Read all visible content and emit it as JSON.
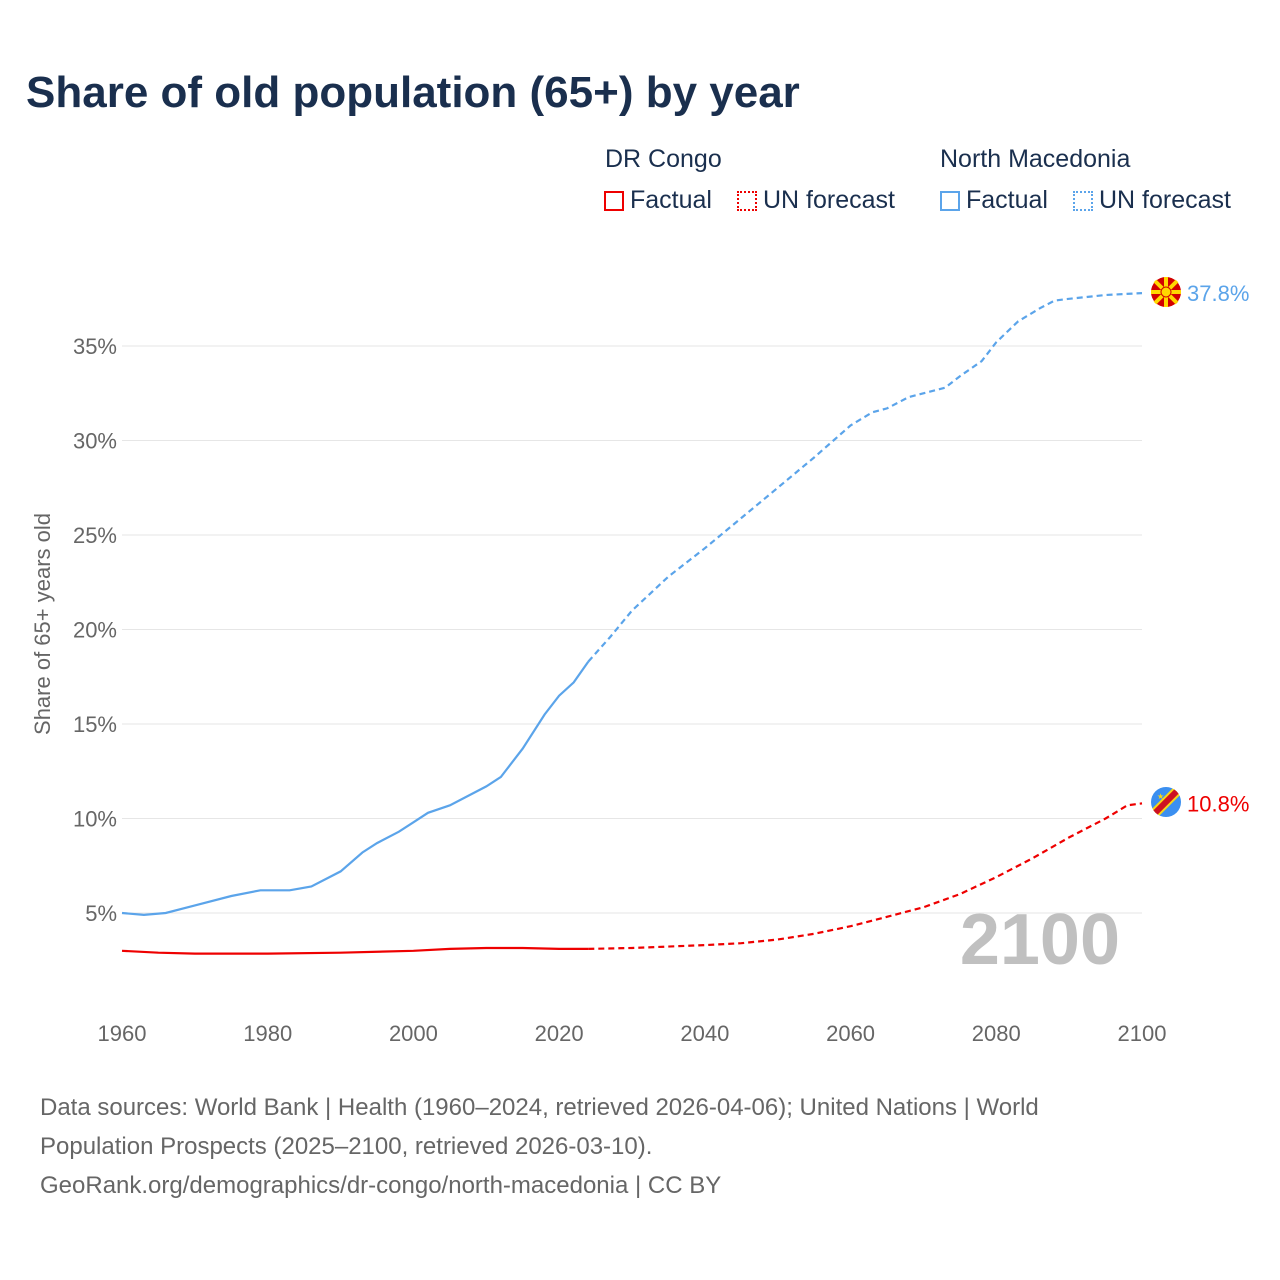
{
  "title": "Share of old population (65+) by year",
  "legend": {
    "groups": [
      {
        "name": "DR Congo",
        "factual": "Factual",
        "forecast": "UN forecast",
        "color": "#ee0000"
      },
      {
        "name": "North Macedonia",
        "factual": "Factual",
        "forecast": "UN forecast",
        "color": "#5ba4ea"
      }
    ]
  },
  "chart_data": {
    "type": "line",
    "title": "Share of old population (65+) by year",
    "ylabel": "Share of 65+ years old",
    "xlabel": "",
    "xlim": [
      1960,
      2100
    ],
    "ylim": [
      0,
      38
    ],
    "xticks": [
      "1960",
      "1980",
      "2000",
      "2020",
      "2040",
      "2060",
      "2080",
      "2100"
    ],
    "yticks": [
      "5%",
      "10%",
      "15%",
      "20%",
      "25%",
      "30%",
      "35%"
    ],
    "year_label": "2100",
    "series": [
      {
        "name": "North Macedonia",
        "color": "#5ba4ea",
        "end_label": "37.8%",
        "factual": [
          [
            1960,
            5.0
          ],
          [
            1963,
            4.9
          ],
          [
            1966,
            5.0
          ],
          [
            1970,
            5.4
          ],
          [
            1975,
            5.9
          ],
          [
            1979,
            6.2
          ],
          [
            1983,
            6.2
          ],
          [
            1986,
            6.4
          ],
          [
            1990,
            7.2
          ],
          [
            1993,
            8.2
          ],
          [
            1995,
            8.7
          ],
          [
            1998,
            9.3
          ],
          [
            2000,
            9.8
          ],
          [
            2002,
            10.3
          ],
          [
            2005,
            10.7
          ],
          [
            2010,
            11.7
          ],
          [
            2012,
            12.2
          ],
          [
            2015,
            13.7
          ],
          [
            2018,
            15.5
          ],
          [
            2020,
            16.5
          ],
          [
            2022,
            17.2
          ],
          [
            2024,
            18.3
          ]
        ],
        "forecast": [
          [
            2024,
            18.3
          ],
          [
            2027,
            19.6
          ],
          [
            2030,
            21.0
          ],
          [
            2035,
            22.8
          ],
          [
            2040,
            24.3
          ],
          [
            2045,
            25.9
          ],
          [
            2050,
            27.5
          ],
          [
            2055,
            29.1
          ],
          [
            2060,
            30.8
          ],
          [
            2063,
            31.5
          ],
          [
            2065,
            31.7
          ],
          [
            2068,
            32.3
          ],
          [
            2070,
            32.5
          ],
          [
            2073,
            32.8
          ],
          [
            2075,
            33.4
          ],
          [
            2078,
            34.2
          ],
          [
            2080,
            35.2
          ],
          [
            2083,
            36.3
          ],
          [
            2086,
            37.0
          ],
          [
            2088,
            37.4
          ],
          [
            2090,
            37.5
          ],
          [
            2095,
            37.7
          ],
          [
            2100,
            37.8
          ]
        ]
      },
      {
        "name": "DR Congo",
        "color": "#ee0000",
        "end_label": "10.8%",
        "factual": [
          [
            1960,
            3.0
          ],
          [
            1965,
            2.9
          ],
          [
            1970,
            2.85
          ],
          [
            1980,
            2.85
          ],
          [
            1990,
            2.9
          ],
          [
            2000,
            3.0
          ],
          [
            2005,
            3.1
          ],
          [
            2010,
            3.15
          ],
          [
            2015,
            3.15
          ],
          [
            2020,
            3.1
          ],
          [
            2024,
            3.1
          ]
        ],
        "forecast": [
          [
            2024,
            3.1
          ],
          [
            2030,
            3.15
          ],
          [
            2040,
            3.3
          ],
          [
            2045,
            3.4
          ],
          [
            2050,
            3.6
          ],
          [
            2055,
            3.9
          ],
          [
            2060,
            4.3
          ],
          [
            2065,
            4.8
          ],
          [
            2070,
            5.3
          ],
          [
            2075,
            6.0
          ],
          [
            2080,
            6.9
          ],
          [
            2085,
            7.9
          ],
          [
            2090,
            9.0
          ],
          [
            2095,
            10.0
          ],
          [
            2098,
            10.7
          ],
          [
            2100,
            10.8
          ]
        ]
      }
    ]
  },
  "footer": {
    "line1": "Data sources: World Bank | Health (1960–2024, retrieved 2026-04-06); United Nations | World",
    "line2": "Population Prospects (2025–2100, retrieved 2026-03-10).",
    "line3": "GeoRank.org/demographics/dr-congo/north-macedonia | CC BY"
  }
}
